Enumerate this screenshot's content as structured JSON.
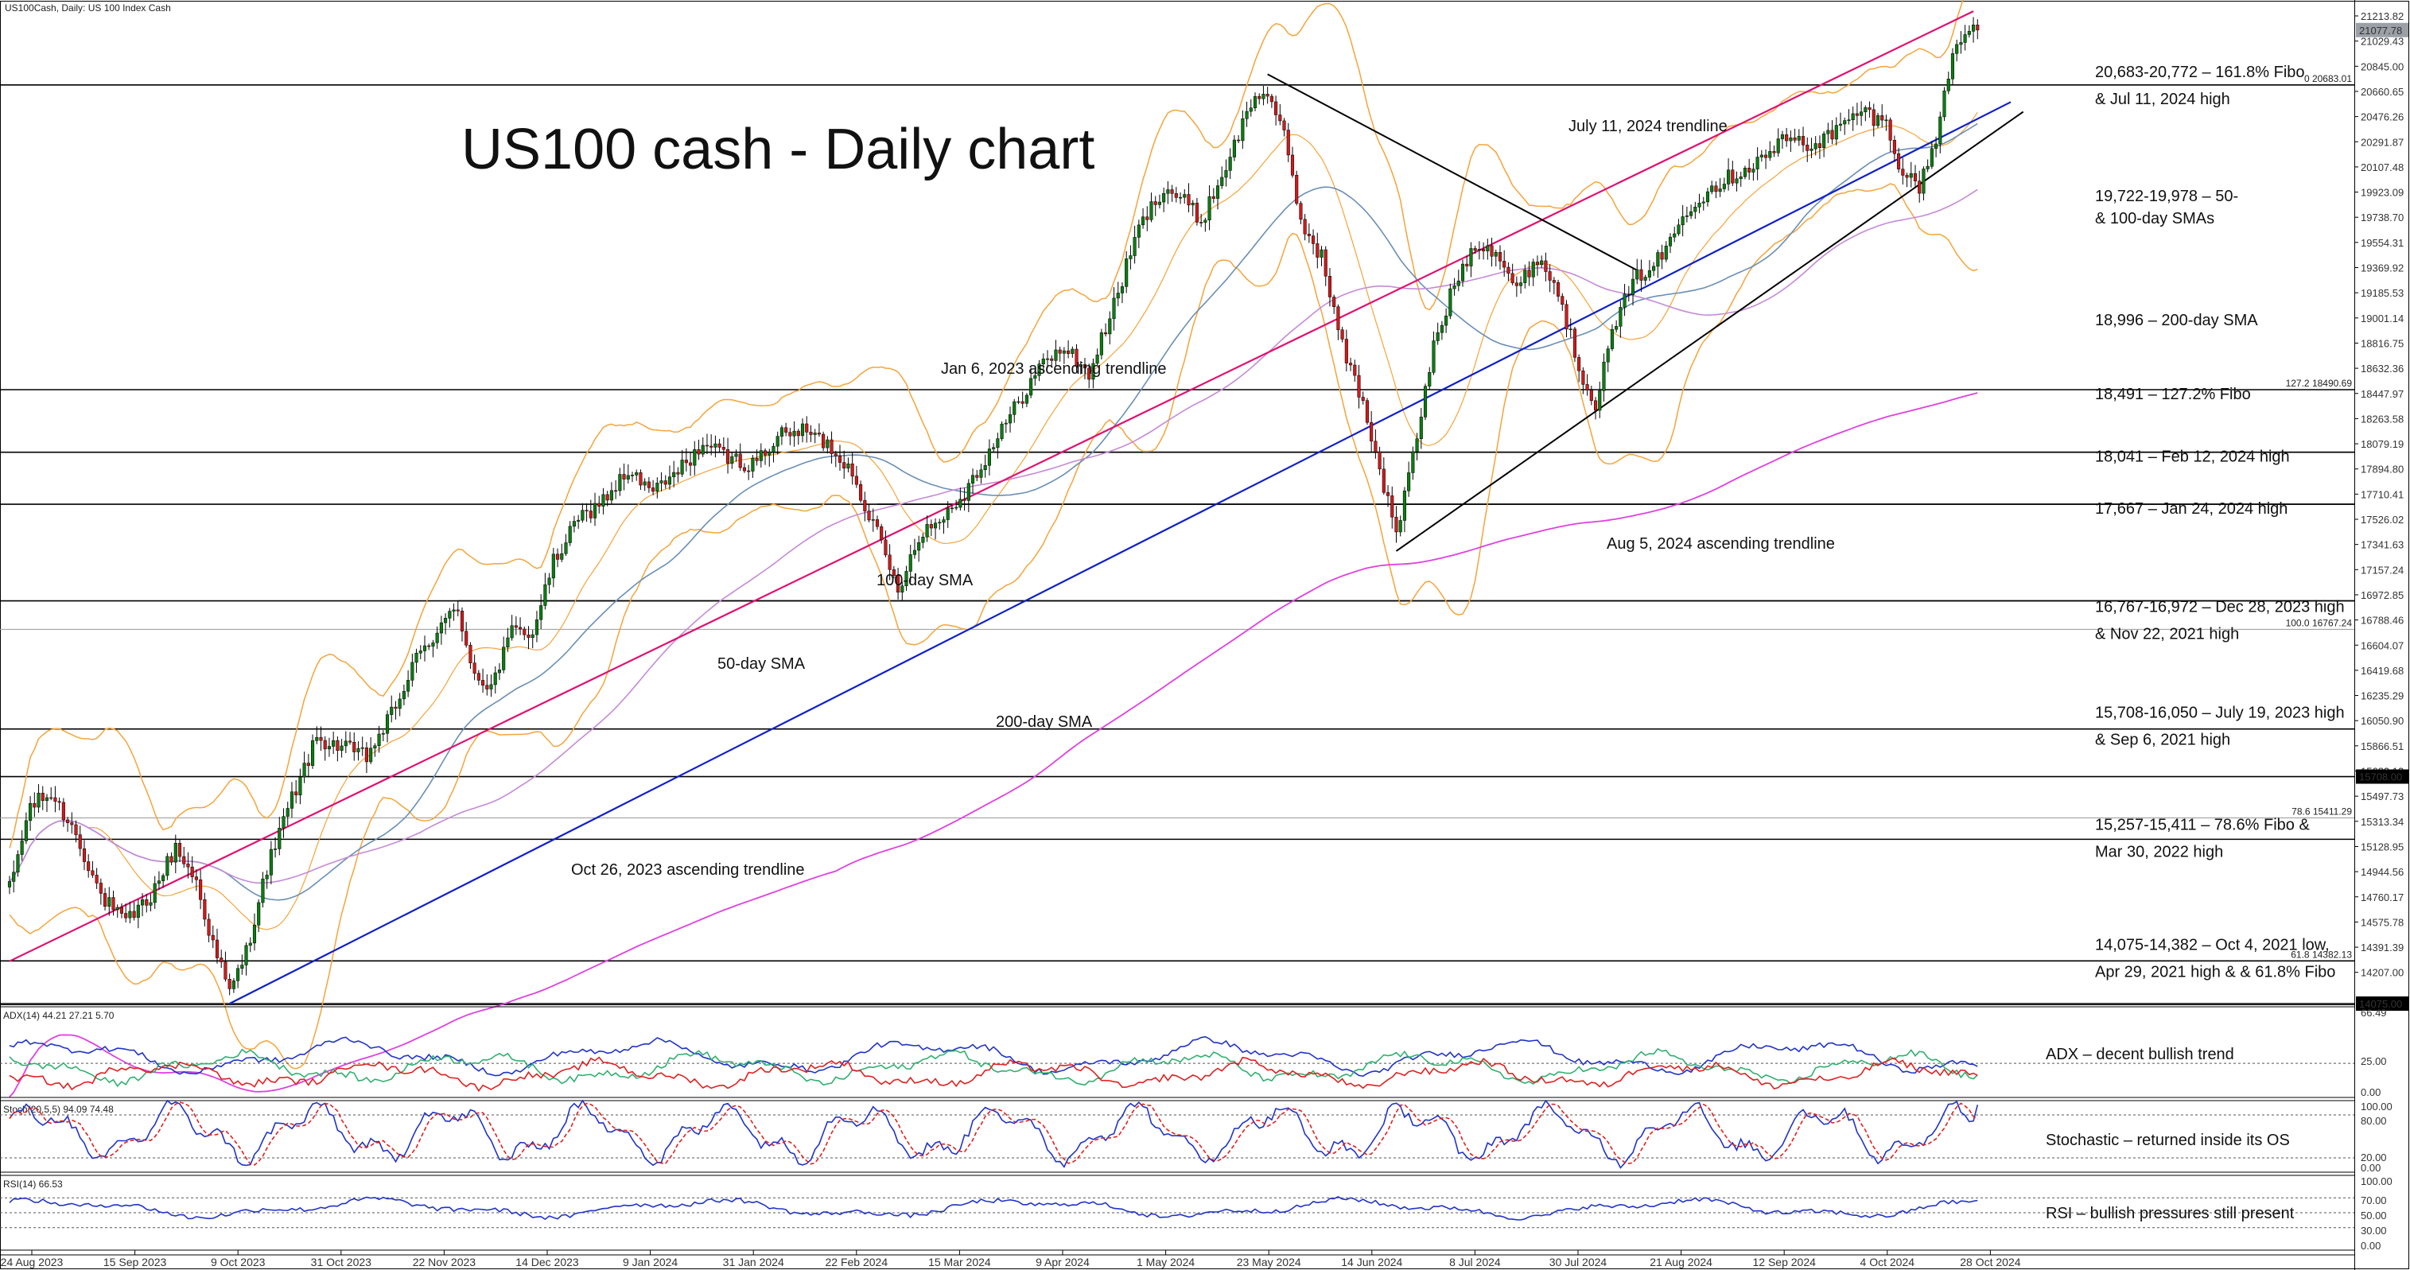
{
  "chart_data": {
    "type": "candlestick",
    "symbol_header": "US100Cash, Daily:  US 100 Index Cash",
    "title": "US100 cash - Daily chart",
    "ylim": [
      14075,
      21213.82
    ],
    "current_price": "21077.78",
    "price_ticks": [
      "21213.82",
      "21029.43",
      "20845.00",
      "20660.65",
      "20476.26",
      "20291.87",
      "20107.48",
      "19923.09",
      "19738.70",
      "19554.31",
      "19369.92",
      "19185.53",
      "19001.14",
      "18816.75",
      "18632.36",
      "18447.97",
      "18263.58",
      "18079.19",
      "17894.80",
      "17710.41",
      "17526.02",
      "17341.63",
      "17157.24",
      "16972.85",
      "16788.46",
      "16604.07",
      "16419.68",
      "16235.29",
      "16050.90",
      "15866.51",
      "15682.12",
      "15497.73",
      "15313.34",
      "15128.95",
      "14944.56",
      "14760.17",
      "14575.78",
      "14391.39",
      "14207.00"
    ],
    "x_labels": [
      "24 Aug 2023",
      "15 Sep 2023",
      "9 Oct 2023",
      "31 Oct 2023",
      "22 Nov 2023",
      "14 Dec 2023",
      "9 Jan 2024",
      "31 Jan 2024",
      "22 Feb 2024",
      "15 Mar 2024",
      "9 Apr 2024",
      "1 May 2024",
      "23 May 2024",
      "14 Jun 2024",
      "8 Jul 2024",
      "30 Jul 2024",
      "21 Aug 2024",
      "12 Sep 2024",
      "4 Oct 2024",
      "28 Oct 2024"
    ],
    "levels": [
      {
        "price": 20683,
        "tag": "0 20683.01",
        "label": "20,683-20,772 – 161.8% Fibo",
        "label2": "& Jul 11, 2024 high"
      },
      {
        "price": 18491,
        "tag": "127.2 18490.69",
        "label": "18,491 – 127.2% Fibo"
      },
      {
        "price": 18041,
        "label": "18,041 – Feb 12, 2024 high"
      },
      {
        "price": 17667,
        "label": "17,667 – Jan 24, 2024 high"
      },
      {
        "price": 16972,
        "label": "16,767-16,972 – Dec 28, 2023 high",
        "label2": "& Nov 22, 2021 high"
      },
      {
        "price": 16767,
        "tag": "100.0 16767.24"
      },
      {
        "price": 16050,
        "label": "15,708-16,050 – July 19, 2023 high",
        "label2": "& Sep 6, 2021 high"
      },
      {
        "price": 15708,
        "tag_box": "15708.00"
      },
      {
        "price": 15411,
        "tag": "78.6 15411.29"
      },
      {
        "price": 15257,
        "label": "15,257-15,411 – 78.6% Fibo &",
        "label2": "Mar 30, 2022 high"
      },
      {
        "price": 14382,
        "tag": "61.8 14382.13",
        "label": "14,075-14,382 – Oct 4, 2021 low,",
        "label2": "Apr 29, 2021 high & & 61.8% Fibo"
      },
      {
        "price": 14075,
        "tag_box": "14075.00"
      }
    ],
    "side_notes": [
      "19,722-19,978 – 50-",
      "& 100-day SMAs",
      "18,996 – 200-day SMA"
    ],
    "trendline_labels": [
      "Jan 6, 2023 ascending trendline",
      "Oct 26, 2023 ascending trendline",
      "July 11, 2024 trendline",
      "Aug 5, 2024 ascending trendline"
    ],
    "sma_labels": [
      "100-day SMA",
      "50-day SMA",
      "200-day SMA"
    ],
    "keypoints": [
      {
        "d": 0,
        "c": 14900
      },
      {
        "d": 5,
        "c": 15500
      },
      {
        "d": 10,
        "c": 15580
      },
      {
        "d": 16,
        "c": 15300
      },
      {
        "d": 22,
        "c": 14850
      },
      {
        "d": 28,
        "c": 14650
      },
      {
        "d": 34,
        "c": 14850
      },
      {
        "d": 40,
        "c": 15200
      },
      {
        "d": 45,
        "c": 14950
      },
      {
        "d": 49,
        "c": 14500
      },
      {
        "d": 53,
        "c": 14150
      },
      {
        "d": 57,
        "c": 14450
      },
      {
        "d": 62,
        "c": 15050
      },
      {
        "d": 68,
        "c": 15550
      },
      {
        "d": 74,
        "c": 15980
      },
      {
        "d": 80,
        "c": 15920
      },
      {
        "d": 86,
        "c": 15850
      },
      {
        "d": 92,
        "c": 16150
      },
      {
        "d": 98,
        "c": 16550
      },
      {
        "d": 104,
        "c": 16800
      },
      {
        "d": 108,
        "c": 16900
      },
      {
        "d": 112,
        "c": 16450
      },
      {
        "d": 116,
        "c": 16350
      },
      {
        "d": 121,
        "c": 16750
      },
      {
        "d": 126,
        "c": 16750
      },
      {
        "d": 131,
        "c": 17250
      },
      {
        "d": 137,
        "c": 17550
      },
      {
        "d": 143,
        "c": 17700
      },
      {
        "d": 149,
        "c": 17900
      },
      {
        "d": 155,
        "c": 17750
      },
      {
        "d": 161,
        "c": 17900
      },
      {
        "d": 167,
        "c": 18100
      },
      {
        "d": 173,
        "c": 18000
      },
      {
        "d": 179,
        "c": 17950
      },
      {
        "d": 185,
        "c": 18150
      },
      {
        "d": 191,
        "c": 18200
      },
      {
        "d": 197,
        "c": 18100
      },
      {
        "d": 203,
        "c": 17900
      },
      {
        "d": 209,
        "c": 17450
      },
      {
        "d": 214,
        "c": 17050
      },
      {
        "d": 219,
        "c": 17450
      },
      {
        "d": 224,
        "c": 17550
      },
      {
        "d": 230,
        "c": 17750
      },
      {
        "d": 236,
        "c": 18050
      },
      {
        "d": 242,
        "c": 18350
      },
      {
        "d": 248,
        "c": 18650
      },
      {
        "d": 254,
        "c": 18800
      },
      {
        "d": 260,
        "c": 18600
      },
      {
        "d": 266,
        "c": 19100
      },
      {
        "d": 272,
        "c": 19650
      },
      {
        "d": 278,
        "c": 19950
      },
      {
        "d": 283,
        "c": 19850
      },
      {
        "d": 287,
        "c": 19700
      },
      {
        "d": 293,
        "c": 20100
      },
      {
        "d": 299,
        "c": 20550
      },
      {
        "d": 303,
        "c": 20650
      },
      {
        "d": 307,
        "c": 20300
      },
      {
        "d": 311,
        "c": 19700
      },
      {
        "d": 316,
        "c": 19450
      },
      {
        "d": 321,
        "c": 18800
      },
      {
        "d": 326,
        "c": 18400
      },
      {
        "d": 331,
        "c": 17800
      },
      {
        "d": 334,
        "c": 17450
      },
      {
        "d": 338,
        "c": 18000
      },
      {
        "d": 343,
        "c": 18800
      },
      {
        "d": 348,
        "c": 19250
      },
      {
        "d": 353,
        "c": 19550
      },
      {
        "d": 358,
        "c": 19500
      },
      {
        "d": 363,
        "c": 19200
      },
      {
        "d": 368,
        "c": 19450
      },
      {
        "d": 373,
        "c": 19200
      },
      {
        "d": 378,
        "c": 18650
      },
      {
        "d": 382,
        "c": 18400
      },
      {
        "d": 387,
        "c": 19000
      },
      {
        "d": 392,
        "c": 19300
      },
      {
        "d": 398,
        "c": 19450
      },
      {
        "d": 404,
        "c": 19800
      },
      {
        "d": 410,
        "c": 19950
      },
      {
        "d": 416,
        "c": 20050
      },
      {
        "d": 422,
        "c": 20150
      },
      {
        "d": 428,
        "c": 20300
      },
      {
        "d": 434,
        "c": 20250
      },
      {
        "d": 440,
        "c": 20350
      },
      {
        "d": 446,
        "c": 20500
      },
      {
        "d": 452,
        "c": 20400
      },
      {
        "d": 456,
        "c": 20050
      },
      {
        "d": 460,
        "c": 19950
      },
      {
        "d": 464,
        "c": 20300
      },
      {
        "d": 468,
        "c": 20900
      },
      {
        "d": 471,
        "c": 21100
      },
      {
        "d": 474,
        "c": 21078
      }
    ],
    "indicators": {
      "adx": {
        "header": "ADX(14) 44.21 27.21 5.70",
        "ticks": [
          "66.49",
          "25.00",
          "0.00"
        ],
        "level": 25,
        "note": "ADX – decent bullish trend"
      },
      "stoch": {
        "header": "Stoch(20,5,5) 94.09 74.48",
        "ticks": [
          "100.00",
          "80.00",
          "20.00",
          "0.00"
        ],
        "levels": [
          80,
          20
        ],
        "note": "Stochastic – returned inside its OS"
      },
      "rsi": {
        "header": "RSI(14) 66.53",
        "ticks": [
          "100.00",
          "70.00",
          "50.00",
          "30.00",
          "0.00"
        ],
        "levels": [
          70,
          50,
          30
        ],
        "note": "RSI – bullish pressures still present"
      }
    },
    "colors": {
      "bull": "#0a7d10",
      "bear": "#d11a1a",
      "bollinger": "#f5a43a",
      "sma50": "#6a8fb5",
      "sma100": "#c58ad8",
      "sma200": "#e040e0",
      "jan6_trend": "#e01070",
      "oct26_trend": "#1020c8",
      "black_trend": "#000000",
      "adx_blue": "#2033c8",
      "adx_green": "#30b070",
      "adx_red": "#e02020",
      "stoch_main": "#2033c8",
      "stoch_signal": "#e02020",
      "rsi": "#2033c8",
      "label_pink": "#e01070",
      "label_blue": "#1020c8",
      "label_purple": "#b070d0",
      "label_steel": "#5b86b0"
    }
  }
}
